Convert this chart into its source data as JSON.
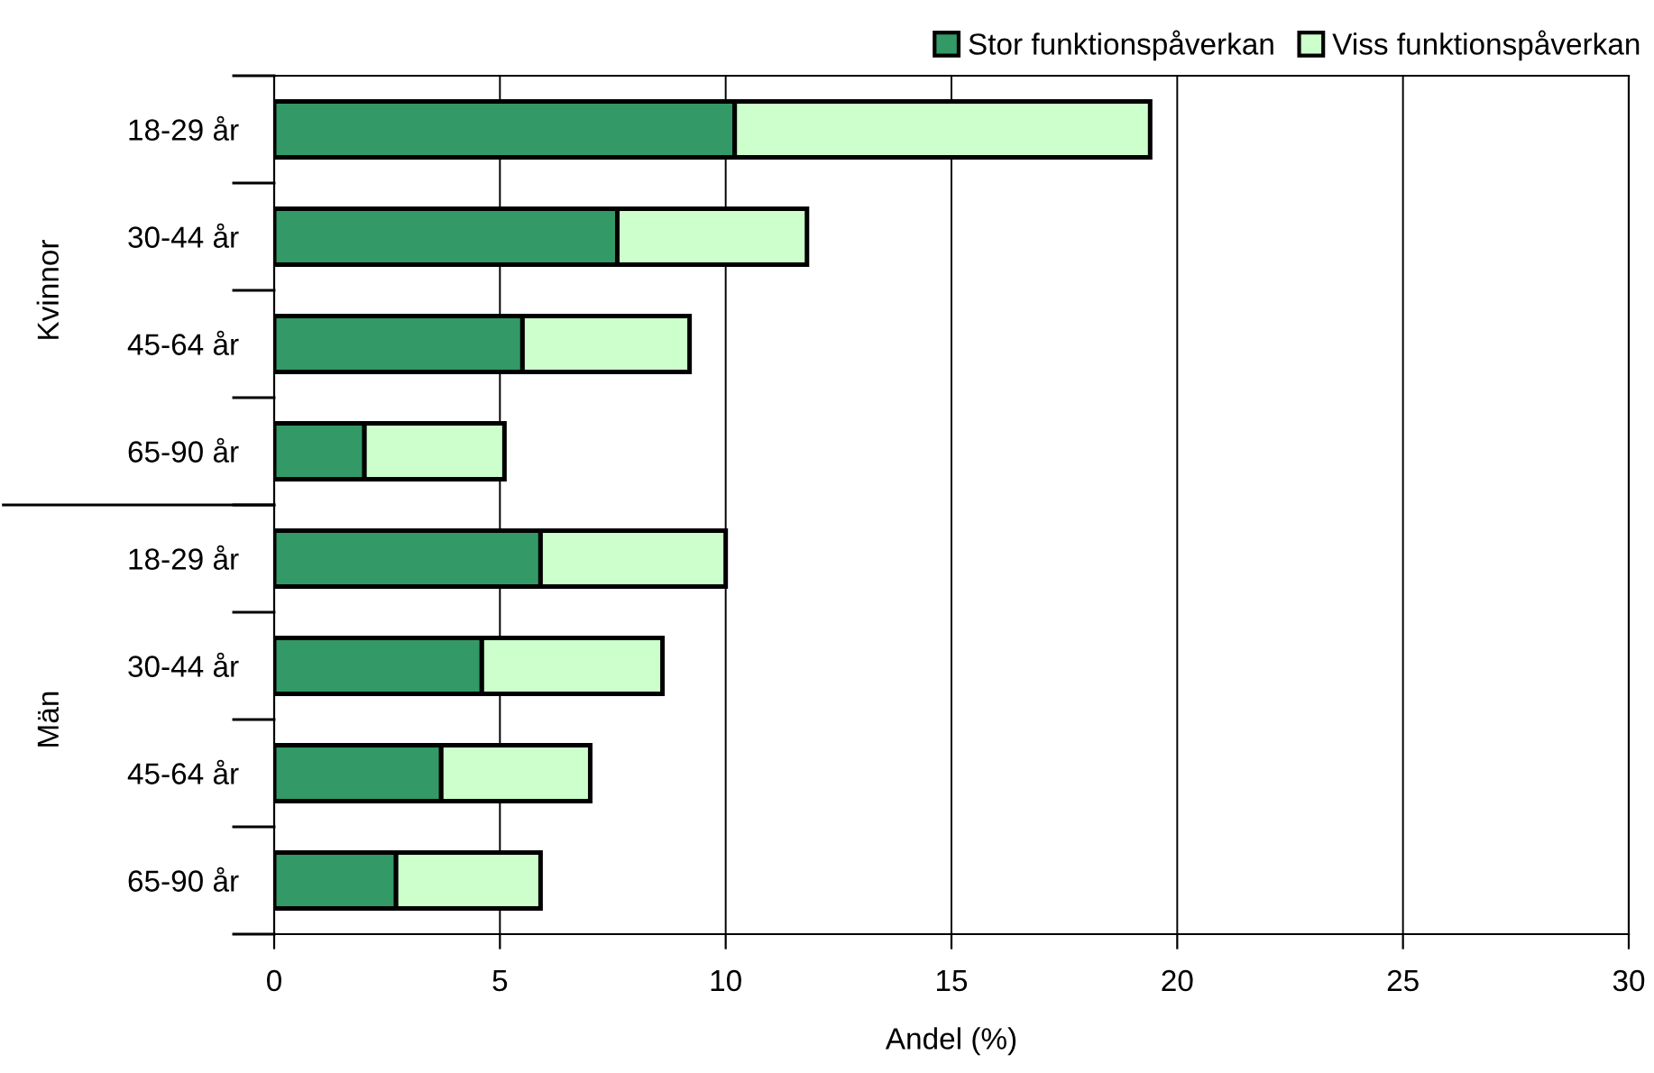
{
  "chart_data": {
    "type": "bar",
    "orientation": "horizontal",
    "stacked": true,
    "xlabel": "Andel (%)",
    "categories": [
      "18-29 år",
      "30-44 år",
      "45-64 år",
      "65-90 år",
      "18-29 år",
      "30-44 år",
      "45-64 år",
      "65-90 år"
    ],
    "annotations": [
      "Kvinnor",
      "Män"
    ],
    "series": [
      {
        "name": "Stor funktionspåverkan",
        "color": "#339966",
        "values": [
          10.2,
          7.6,
          5.5,
          2.0,
          5.9,
          4.6,
          3.7,
          2.7
        ]
      },
      {
        "name": "Viss funktionspåverkan",
        "color": "#ccffcc",
        "values": [
          9.2,
          4.2,
          3.7,
          3.1,
          4.1,
          4.0,
          3.3,
          3.2
        ]
      }
    ],
    "xlim": [
      0,
      30
    ],
    "xticks": [
      0,
      5,
      10,
      15,
      20,
      25,
      30
    ],
    "grid": "x",
    "legend": "top right"
  }
}
